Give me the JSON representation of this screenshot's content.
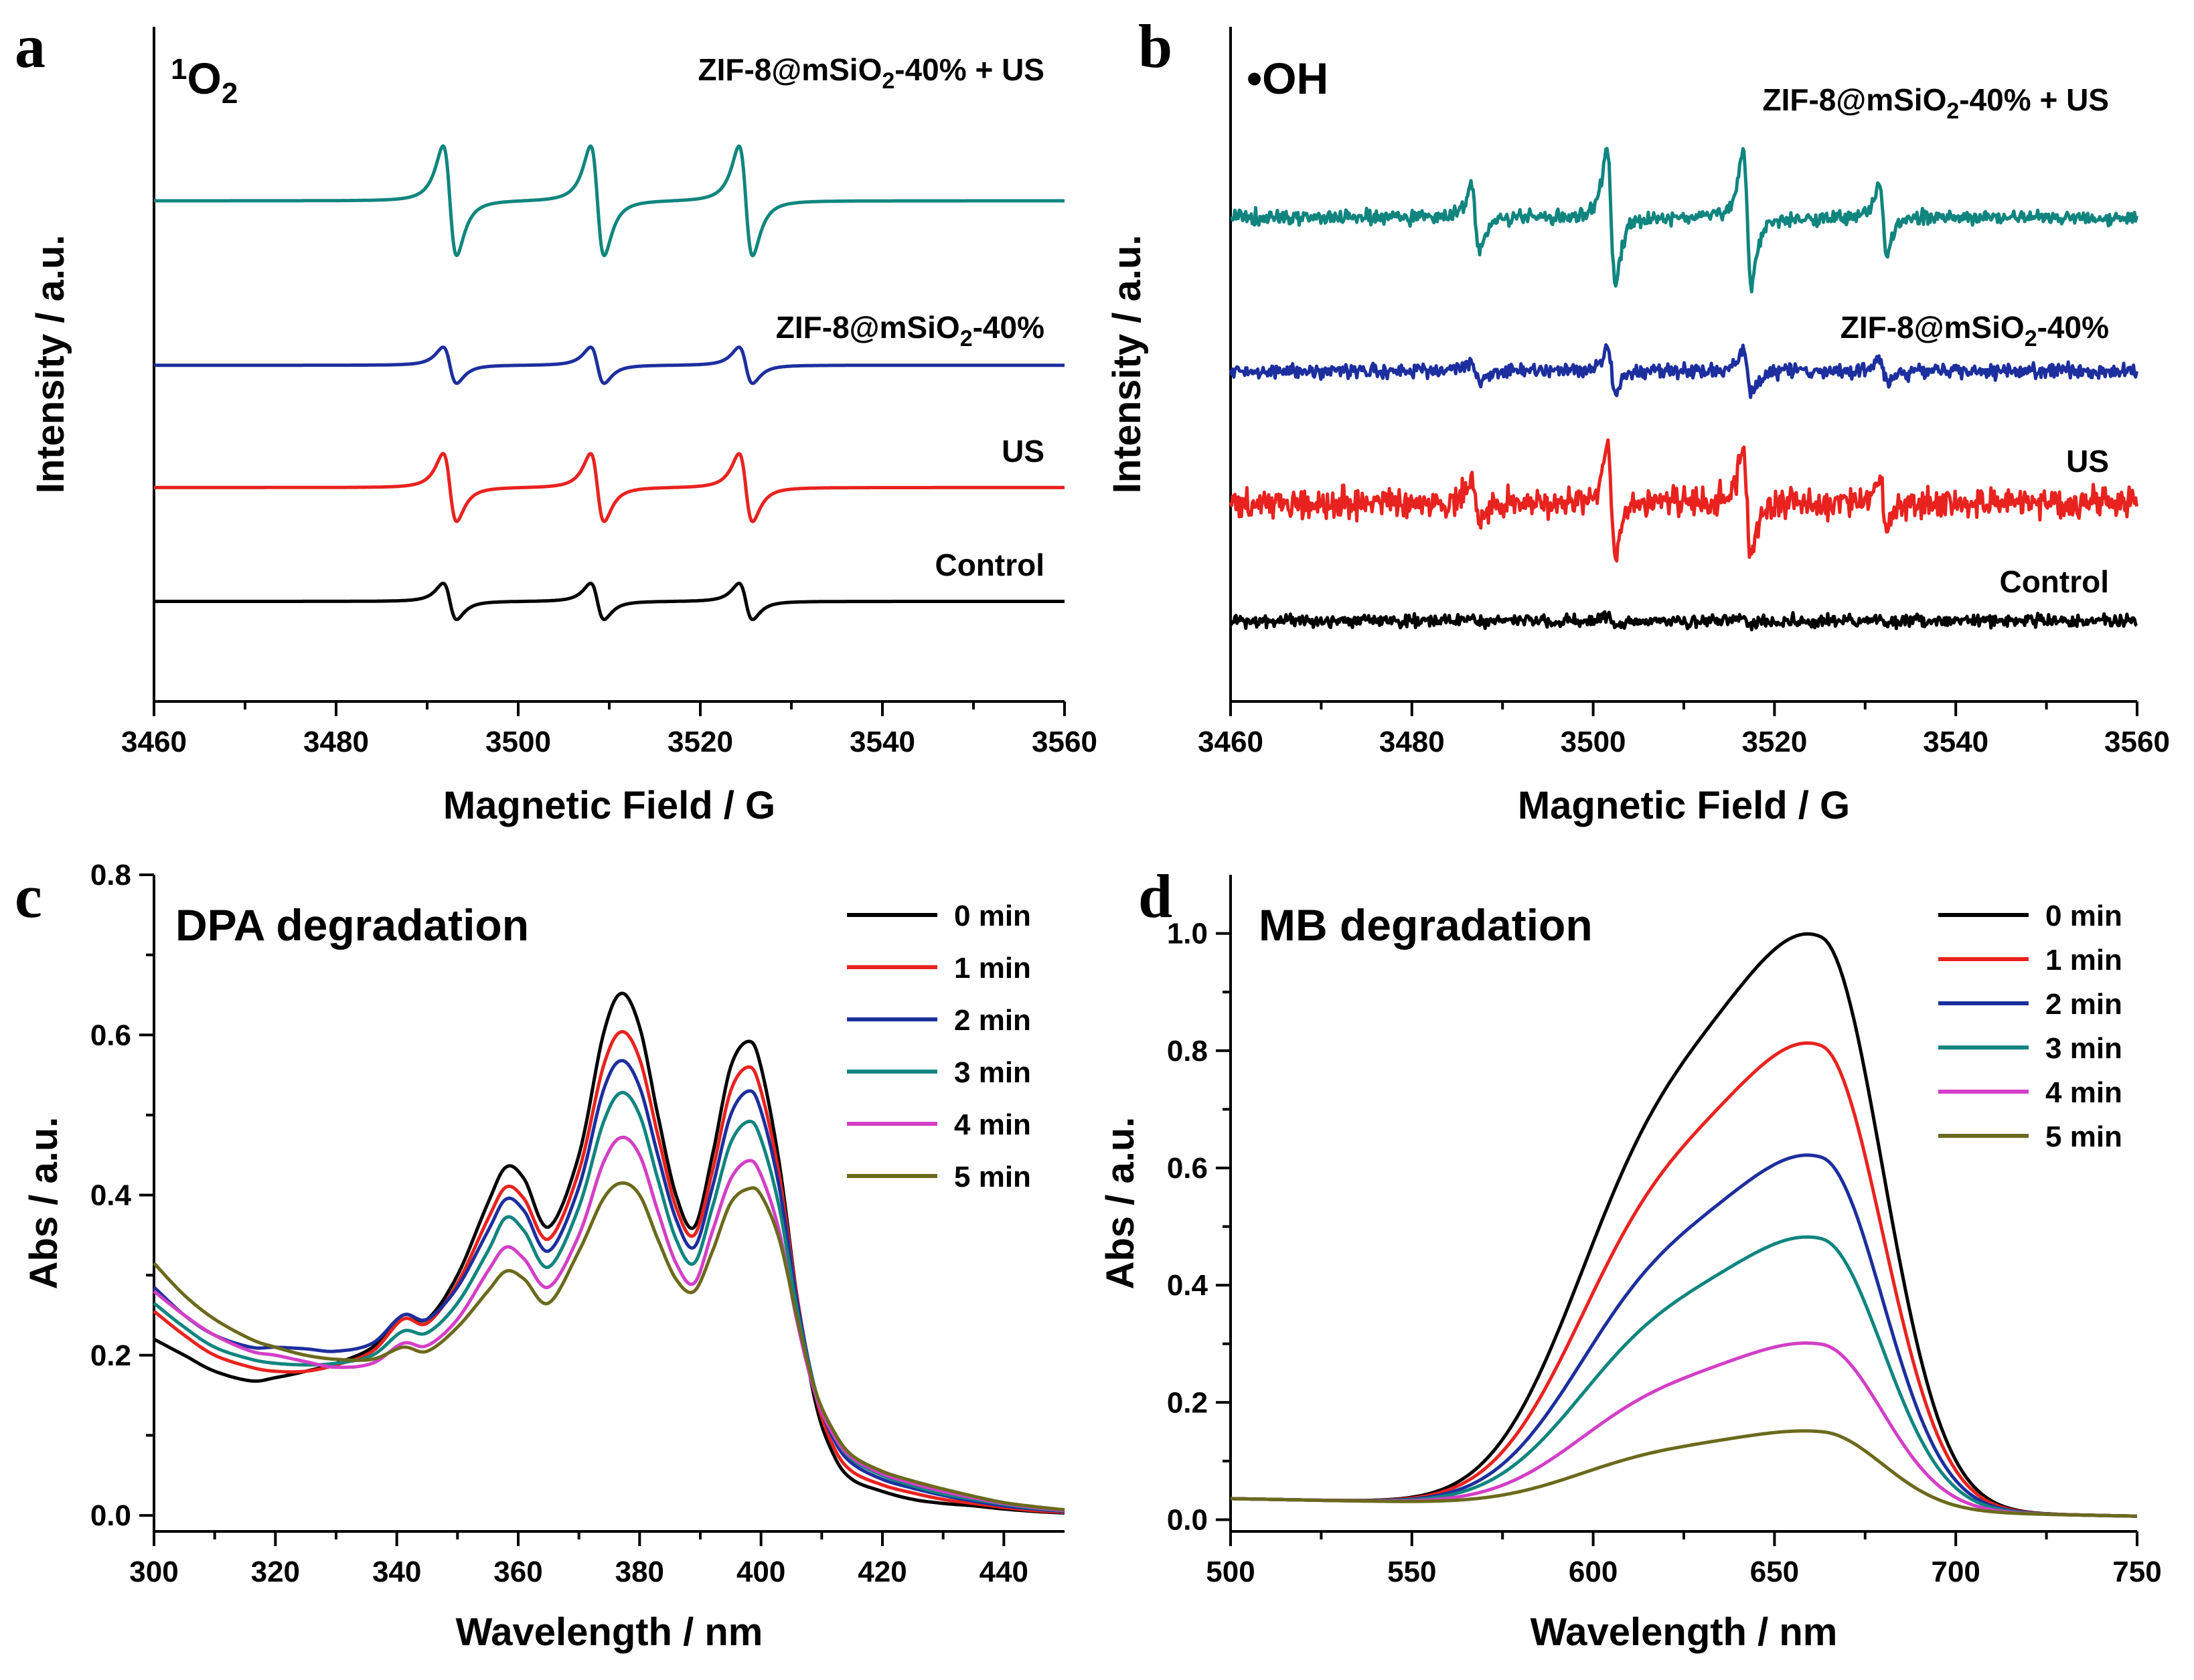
{
  "colors": {
    "black": "#000000",
    "red": "#e8231f",
    "blue": "#1d2f9e",
    "teal": "#10857f",
    "magenta": "#d33fc6",
    "olive": "#6b6a1c"
  },
  "chart_data": [
    {
      "panel": "a",
      "type": "line",
      "title": "¹O₂",
      "title_html": "<tspan font-size='44' dy='-22'>1</tspan><tspan dy='22'>O</tspan><tspan font-size='44' dy='14'>2</tspan>",
      "xlabel": "Magnetic Field / G",
      "ylabel": "Intensity / a.u.",
      "xlim": [
        3460,
        3560
      ],
      "xticks": [
        3460,
        3480,
        3500,
        3520,
        3540,
        3560
      ],
      "grid": false,
      "signal": {
        "centers": [
          3492.5,
          3508.7,
          3525.0
        ],
        "width": 1.3
      },
      "series": [
        {
          "name": "ZIF-8@mSiO₂-40% + US",
          "label_html": "ZIF-8@mSiO<tspan font-size='34' dy='12'>2</tspan><tspan dy='-12'>-40% + US</tspan>",
          "color": "#10857f",
          "baseline": 0.0,
          "amplitude": 1.0,
          "noise": 0.0
        },
        {
          "name": "ZIF-8@mSiO₂-40%",
          "label_html": "ZIF-8@mSiO<tspan font-size='34' dy='12'>2</tspan><tspan dy='-12'>-40%</tspan>",
          "color": "#1d2f9e",
          "baseline": -1.95,
          "amplitude": 0.33,
          "noise": 0.0
        },
        {
          "name": "US",
          "label_html": "US",
          "color": "#e8231f",
          "baseline": -3.4,
          "amplitude": 0.62,
          "noise": 0.0
        },
        {
          "name": "Control",
          "label_html": "Control",
          "color": "#000000",
          "baseline": -4.75,
          "amplitude": 0.33,
          "noise": 0.0
        }
      ]
    },
    {
      "panel": "b",
      "type": "line",
      "title": "•OH",
      "title_html": "•OH",
      "xlabel": "Magnetic Field / G",
      "ylabel": "Intensity / a.u.",
      "xlim": [
        3460,
        3560
      ],
      "xticks": [
        3460,
        3480,
        3500,
        3520,
        3540,
        3560
      ],
      "grid": false,
      "signal": {
        "centers": [
          3487.0,
          3502.0,
          3517.0,
          3532.0
        ],
        "width": 0.8,
        "ratios": [
          1,
          2,
          2,
          1
        ]
      },
      "series": [
        {
          "name": "ZIF-8@mSiO₂-40% + US",
          "label_html": "ZIF-8@mSiO<tspan font-size='34' dy='12'>2</tspan><tspan dy='-12'>-40% + US</tspan>",
          "color": "#10857f",
          "baseline": 0.0,
          "amplitude": 0.6,
          "noise": 0.08
        },
        {
          "name": "ZIF-8@mSiO₂-40%",
          "label_html": "ZIF-8@mSiO<tspan font-size='34' dy='12'>2</tspan><tspan dy='-12'>-40%</tspan>",
          "color": "#1d2f9e",
          "baseline": -1.75,
          "amplitude": 0.2,
          "noise": 0.08
        },
        {
          "name": "US",
          "label_html": "US",
          "color": "#e8231f",
          "baseline": -3.25,
          "amplitude": 0.45,
          "noise": 0.16
        },
        {
          "name": "Control",
          "label_html": "Control",
          "color": "#000000",
          "baseline": -4.6,
          "amplitude": 0.04,
          "noise": 0.07
        }
      ]
    },
    {
      "panel": "c",
      "type": "line",
      "title": "DPA degradation",
      "xlabel": "Wavelength / nm",
      "ylabel": "Abs / a.u.",
      "xlim": [
        300,
        450
      ],
      "ylim": [
        -0.02,
        0.8
      ],
      "xticks": [
        300,
        320,
        340,
        360,
        380,
        400,
        420,
        440
      ],
      "yticks": [
        0.0,
        0.2,
        0.4,
        0.6,
        0.8
      ],
      "grid": false,
      "legend_position": "top-right",
      "series": [
        {
          "name": "0 min",
          "color": "#000000",
          "x": [
            300,
            305,
            310,
            316,
            320,
            325,
            330,
            336,
            341,
            345,
            350,
            355,
            358,
            361,
            365,
            370,
            374,
            377,
            380,
            383,
            386,
            389,
            392,
            395,
            398,
            400,
            403,
            406,
            409,
            412,
            415,
            420,
            425,
            430,
            435,
            440,
            445,
            450
          ],
          "y": [
            0.22,
            0.2,
            0.18,
            0.168,
            0.172,
            0.18,
            0.19,
            0.21,
            0.25,
            0.245,
            0.3,
            0.39,
            0.435,
            0.42,
            0.36,
            0.45,
            0.6,
            0.652,
            0.61,
            0.5,
            0.4,
            0.36,
            0.45,
            0.56,
            0.592,
            0.56,
            0.44,
            0.27,
            0.14,
            0.075,
            0.045,
            0.03,
            0.02,
            0.015,
            0.012,
            0.008,
            0.005,
            0.003
          ]
        },
        {
          "name": "1 min",
          "color": "#e8231f",
          "x": [
            300,
            305,
            310,
            316,
            320,
            325,
            330,
            336,
            341,
            345,
            350,
            355,
            358,
            361,
            365,
            370,
            374,
            377,
            380,
            383,
            386,
            389,
            392,
            395,
            398,
            400,
            403,
            406,
            409,
            412,
            415,
            420,
            425,
            430,
            435,
            440,
            445,
            450
          ],
          "y": [
            0.255,
            0.225,
            0.2,
            0.185,
            0.18,
            0.18,
            0.188,
            0.205,
            0.245,
            0.24,
            0.29,
            0.37,
            0.41,
            0.395,
            0.345,
            0.43,
            0.56,
            0.604,
            0.57,
            0.475,
            0.385,
            0.35,
            0.43,
            0.53,
            0.56,
            0.53,
            0.425,
            0.27,
            0.15,
            0.085,
            0.055,
            0.038,
            0.028,
            0.02,
            0.015,
            0.01,
            0.006,
            0.004
          ]
        },
        {
          "name": "2 min",
          "color": "#1d2f9e",
          "x": [
            300,
            305,
            310,
            316,
            320,
            325,
            330,
            336,
            341,
            345,
            350,
            355,
            358,
            361,
            365,
            370,
            374,
            377,
            380,
            383,
            386,
            389,
            392,
            395,
            398,
            400,
            403,
            406,
            409,
            412,
            415,
            420,
            425,
            430,
            435,
            440,
            445,
            450
          ],
          "y": [
            0.285,
            0.25,
            0.225,
            0.21,
            0.21,
            0.208,
            0.205,
            0.215,
            0.25,
            0.245,
            0.285,
            0.355,
            0.395,
            0.38,
            0.33,
            0.41,
            0.53,
            0.568,
            0.535,
            0.45,
            0.37,
            0.335,
            0.41,
            0.5,
            0.53,
            0.505,
            0.41,
            0.265,
            0.155,
            0.095,
            0.065,
            0.045,
            0.034,
            0.025,
            0.018,
            0.012,
            0.008,
            0.005
          ]
        },
        {
          "name": "3 min",
          "color": "#10857f",
          "x": [
            300,
            305,
            310,
            316,
            320,
            325,
            330,
            336,
            341,
            345,
            350,
            355,
            358,
            361,
            365,
            370,
            374,
            377,
            380,
            383,
            386,
            389,
            392,
            395,
            398,
            400,
            403,
            406,
            409,
            412,
            415,
            420,
            425,
            430,
            435,
            440,
            445,
            450
          ],
          "y": [
            0.265,
            0.235,
            0.21,
            0.195,
            0.19,
            0.188,
            0.19,
            0.2,
            0.23,
            0.228,
            0.265,
            0.33,
            0.372,
            0.355,
            0.31,
            0.385,
            0.49,
            0.528,
            0.5,
            0.42,
            0.345,
            0.315,
            0.385,
            0.465,
            0.492,
            0.47,
            0.385,
            0.255,
            0.155,
            0.1,
            0.07,
            0.05,
            0.037,
            0.027,
            0.02,
            0.014,
            0.009,
            0.006
          ]
        },
        {
          "name": "4 min",
          "color": "#d33fc6",
          "x": [
            300,
            305,
            310,
            316,
            320,
            325,
            330,
            336,
            341,
            345,
            350,
            355,
            358,
            361,
            365,
            370,
            374,
            377,
            380,
            383,
            386,
            389,
            392,
            395,
            398,
            400,
            403,
            406,
            409,
            412,
            415,
            420,
            425,
            430,
            435,
            440,
            445,
            450
          ],
          "y": [
            0.28,
            0.25,
            0.225,
            0.205,
            0.2,
            0.192,
            0.185,
            0.19,
            0.215,
            0.212,
            0.245,
            0.305,
            0.335,
            0.32,
            0.285,
            0.35,
            0.44,
            0.472,
            0.45,
            0.38,
            0.315,
            0.29,
            0.355,
            0.42,
            0.443,
            0.425,
            0.355,
            0.24,
            0.15,
            0.1,
            0.072,
            0.052,
            0.04,
            0.03,
            0.022,
            0.015,
            0.01,
            0.006
          ]
        },
        {
          "name": "5 min",
          "color": "#6b6a1c",
          "x": [
            300,
            305,
            310,
            316,
            320,
            325,
            330,
            336,
            341,
            345,
            350,
            355,
            358,
            361,
            365,
            370,
            374,
            377,
            380,
            383,
            386,
            389,
            392,
            395,
            398,
            400,
            403,
            406,
            409,
            412,
            415,
            420,
            425,
            430,
            435,
            440,
            445,
            450
          ],
          "y": [
            0.315,
            0.275,
            0.245,
            0.22,
            0.21,
            0.2,
            0.195,
            0.195,
            0.21,
            0.205,
            0.235,
            0.28,
            0.305,
            0.295,
            0.265,
            0.33,
            0.395,
            0.415,
            0.4,
            0.345,
            0.295,
            0.28,
            0.33,
            0.39,
            0.408,
            0.4,
            0.345,
            0.245,
            0.155,
            0.105,
            0.075,
            0.055,
            0.043,
            0.033,
            0.024,
            0.016,
            0.011,
            0.007
          ]
        }
      ]
    },
    {
      "panel": "d",
      "type": "line",
      "title": "MB degradation",
      "xlabel": "Wavelength / nm",
      "ylabel": "Abs / a.u.",
      "xlim": [
        500,
        750
      ],
      "ylim": [
        -0.02,
        1.1
      ],
      "xticks": [
        500,
        550,
        600,
        650,
        700,
        750
      ],
      "yticks": [
        0.0,
        0.2,
        0.4,
        0.6,
        0.8,
        1.0
      ],
      "grid": false,
      "legend_position": "top-right",
      "series": [
        {
          "name": "0 min",
          "color": "#000000",
          "peak": 0.95
        },
        {
          "name": "1 min",
          "color": "#e8231f",
          "peak": 0.77
        },
        {
          "name": "2 min",
          "color": "#1d2f9e",
          "peak": 0.585
        },
        {
          "name": "3 min",
          "color": "#10857f",
          "peak": 0.45
        },
        {
          "name": "4 min",
          "color": "#d33fc6",
          "peak": 0.275
        },
        {
          "name": "5 min",
          "color": "#6b6a1c",
          "peak": 0.13
        }
      ]
    }
  ]
}
